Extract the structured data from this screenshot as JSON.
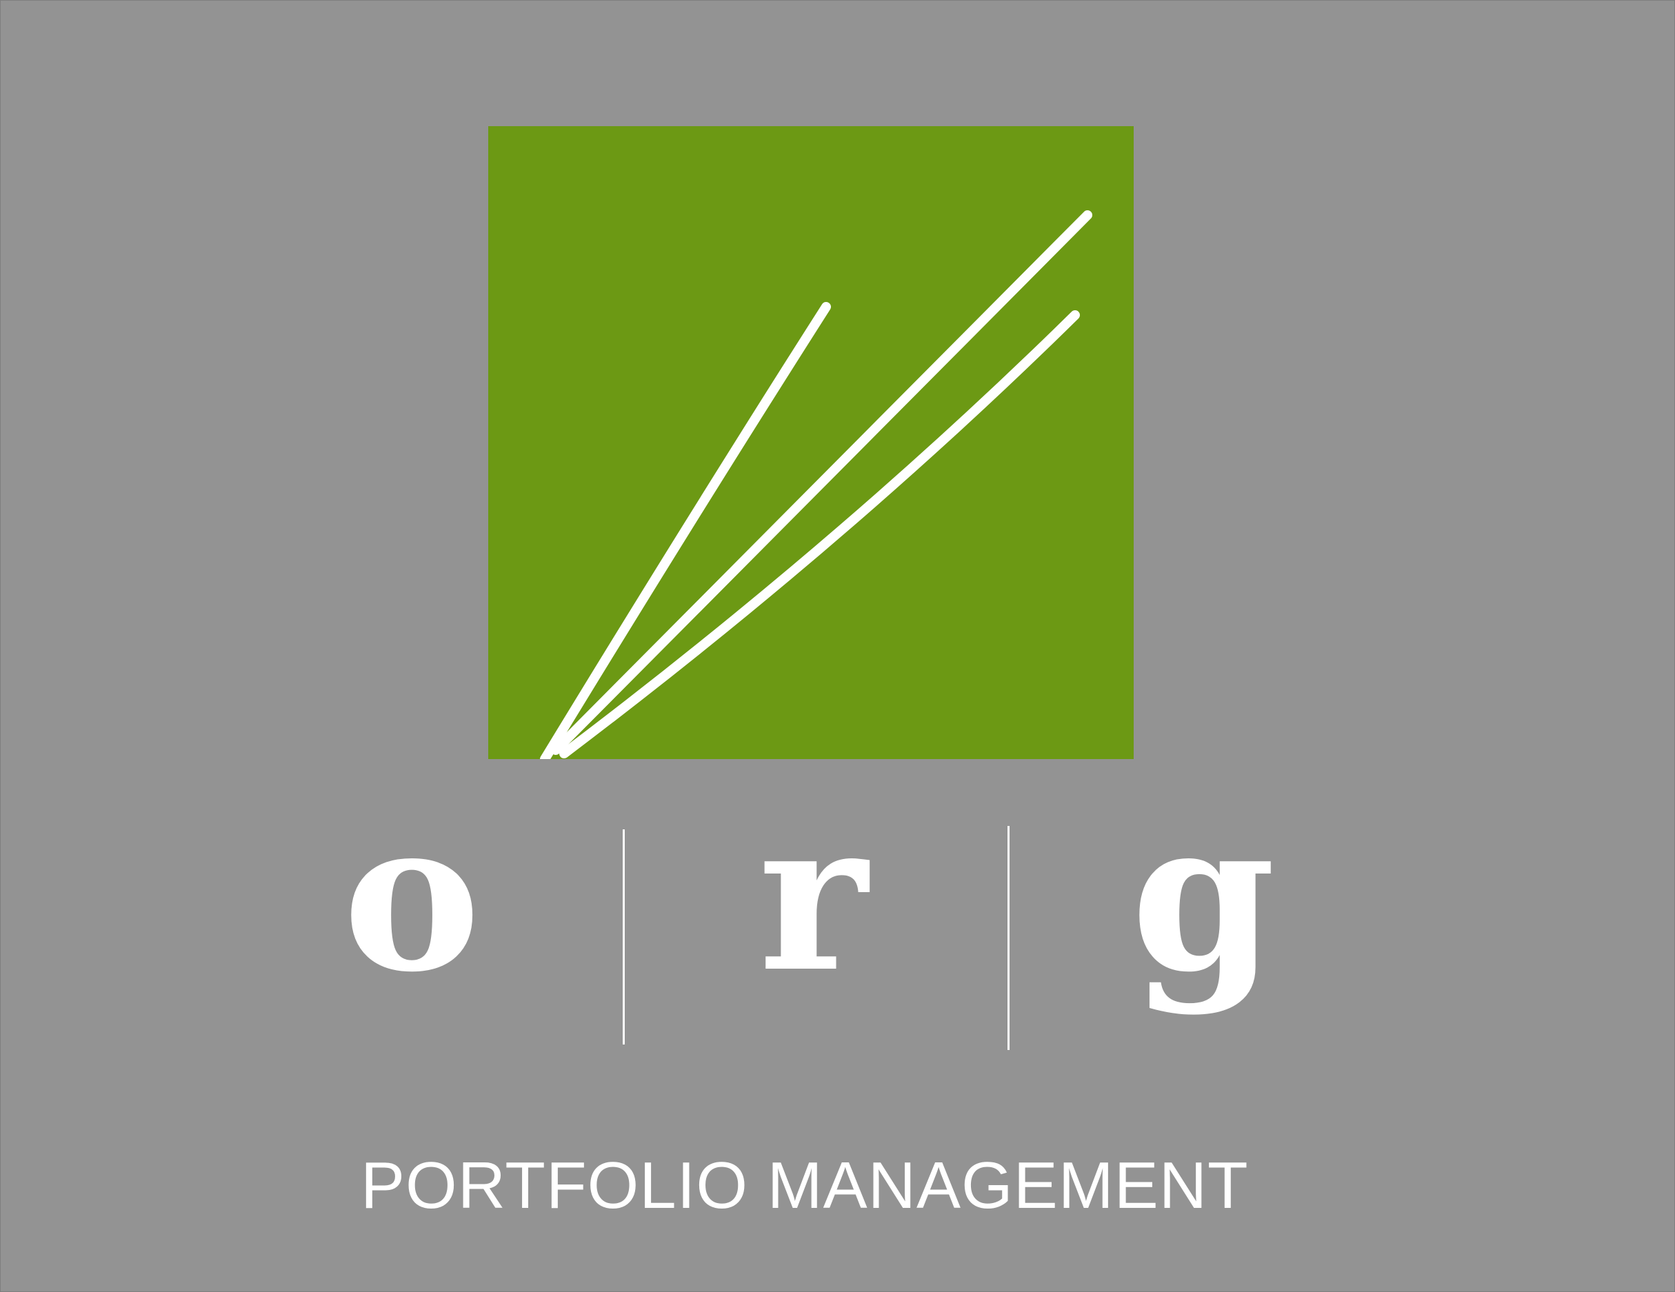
{
  "logo": {
    "letters": [
      "o",
      "r",
      "g"
    ],
    "tagline": "PORTFOLIO MANAGEMENT"
  },
  "colors": {
    "background": "#939393",
    "mark": "#6c9914",
    "foreground": "#ffffff"
  },
  "icons": {
    "mark": "grass-blades-icon"
  }
}
